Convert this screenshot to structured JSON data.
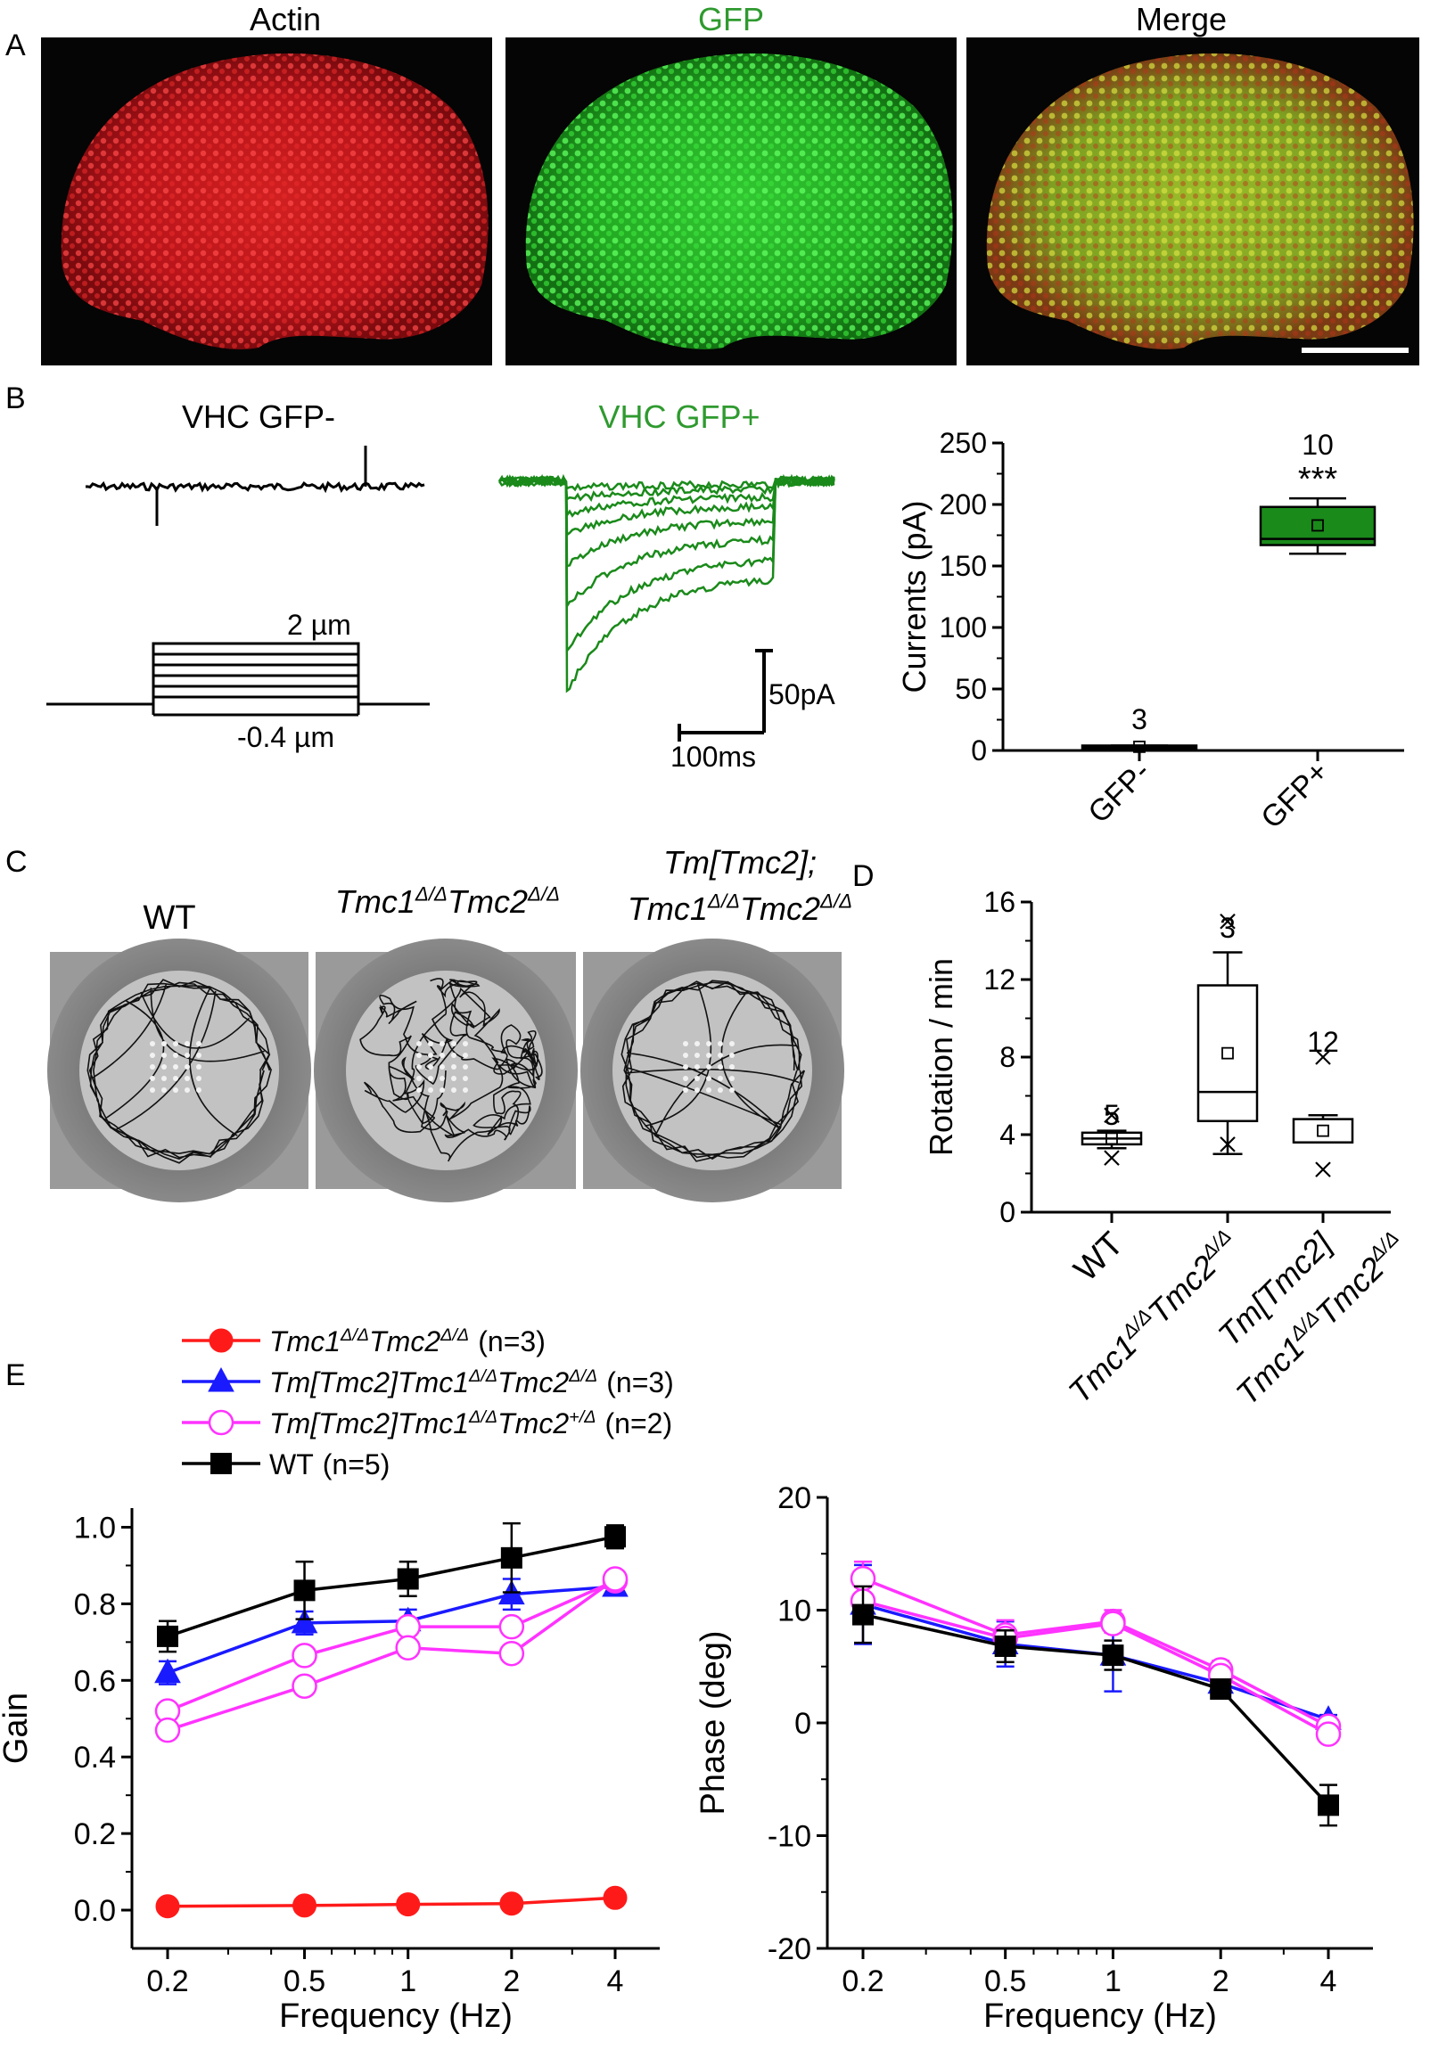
{
  "panels": {
    "A": {
      "letter": "A",
      "image_titles": [
        "Actin",
        "GFP",
        "Merge"
      ],
      "title_colors": [
        "#000000",
        "#2f9a2f",
        "#000000"
      ]
    },
    "B": {
      "letter": "B",
      "trace_titles": {
        "gfp_minus": "VHC GFP-",
        "gfp_plus": "VHC GFP+"
      },
      "stimulus": {
        "top_label": "2 µm",
        "bottom_label": "-0.4 µm"
      },
      "scalebar": {
        "y_label": "50pA",
        "x_label": "100ms"
      },
      "chart_data": {
        "type": "box",
        "ylabel": "Currents (pA)",
        "ylim": [
          0,
          250
        ],
        "yticks": [
          0,
          50,
          100,
          150,
          200,
          250
        ],
        "categories": [
          "GFP-",
          "GFP+"
        ],
        "groups": [
          {
            "label": "GFP-",
            "n": "3",
            "q1": 2,
            "median": 3,
            "q3": 4,
            "mean": 3,
            "whisker_low": 2,
            "whisker_high": 4,
            "color": "#000000"
          },
          {
            "label": "GFP+",
            "n": "10",
            "sig": "***",
            "q1": 167,
            "median": 172,
            "q3": 198,
            "mean": 183,
            "whisker_low": 160,
            "whisker_high": 205,
            "color": "#1a8a1a"
          }
        ]
      }
    },
    "C": {
      "letter": "C",
      "labels": [
        "WT"
      ],
      "italic_labels": {
        "dko": "Tmc1Δ/ΔTmc2Δ/Δ",
        "rescue_line1": "Tm[Tmc2];",
        "rescue_line2": "Tmc1Δ/ΔTmc2Δ/Δ"
      }
    },
    "D": {
      "letter": "D",
      "chart_data": {
        "type": "box",
        "ylabel": "Rotation / min",
        "ylim": [
          0,
          16
        ],
        "yticks": [
          0,
          4,
          8,
          12,
          16
        ],
        "categories": [
          "WT",
          "Tmc1Δ/ΔTmc2Δ/Δ",
          "Tm[Tmc2] Tmc1Δ/ΔTmc2Δ/Δ"
        ],
        "groups": [
          {
            "n": "5",
            "q1": 3.5,
            "median": 3.8,
            "q3": 4.1,
            "mean": 3.8,
            "whisker_low": 3.3,
            "whisker_high": 4.2,
            "outliers": [
              2.8,
              5.0
            ]
          },
          {
            "n": "3",
            "q1": 4.7,
            "median": 6.2,
            "q3": 11.7,
            "mean": 8.2,
            "whisker_low": 3.0,
            "whisker_high": 13.4,
            "outliers": [
              15.0,
              3.5
            ]
          },
          {
            "n": "12",
            "q1": 3.6,
            "median": 3.6,
            "q3": 4.8,
            "mean": 4.2,
            "whisker_low": 3.6,
            "whisker_high": 5.0,
            "outliers": [
              8.0,
              2.2
            ]
          }
        ]
      }
    },
    "E": {
      "letter": "E",
      "legend": [
        {
          "name": "Tmc1Δ/ΔTmc2Δ/Δ",
          "n": "(n=3)",
          "color": "#ff1a1a",
          "marker": "circle-filled"
        },
        {
          "name": "Tm[Tmc2]Tmc1Δ/ΔTmc2Δ/Δ",
          "n": "(n=3)",
          "color": "#1a1aff",
          "marker": "triangle-filled"
        },
        {
          "name": "Tm[Tmc2]Tmc1Δ/ΔTmc2+/Δ",
          "n": "(n=2)",
          "color": "#ff33ff",
          "marker": "circle-open"
        },
        {
          "name": "WT",
          "n": "(n=5)",
          "color": "#000000",
          "marker": "square-filled"
        }
      ],
      "charts": [
        {
          "type": "line",
          "xlabel": "Frequency (Hz)",
          "ylabel": "Gain",
          "x": [
            0.2,
            0.5,
            1,
            2,
            4
          ],
          "xtick_labels": [
            "0.2",
            "0.5",
            "1",
            "2",
            "4"
          ],
          "xscale": "log",
          "ylim": [
            -0.1,
            1.05
          ],
          "yticks": [
            0.0,
            0.2,
            0.4,
            0.6,
            0.8,
            1.0
          ],
          "ytick_labels": [
            "0.0",
            "0.2",
            "0.4",
            "0.6",
            "0.8",
            "1.0"
          ],
          "series": [
            {
              "key": "dko",
              "values": [
                0.01,
                0.012,
                0.015,
                0.017,
                0.032
              ],
              "err": [
                0,
                0,
                0,
                0,
                0
              ]
            },
            {
              "key": "rescue",
              "values": [
                0.62,
                0.75,
                0.755,
                0.825,
                0.845
              ],
              "err": [
                0.03,
                0.03,
                0.03,
                0.04,
                0.02
              ]
            },
            {
              "key": "het1",
              "values": [
                0.52,
                0.665,
                0.74,
                0.74,
                0.86
              ],
              "err": [
                0,
                0,
                0,
                0,
                0
              ]
            },
            {
              "key": "het2",
              "values": [
                0.47,
                0.585,
                0.685,
                0.67,
                0.865
              ],
              "err": [
                0,
                0,
                0,
                0,
                0
              ]
            },
            {
              "key": "wt",
              "values": [
                0.715,
                0.835,
                0.865,
                0.92,
                0.975
              ],
              "err": [
                0.04,
                0.075,
                0.045,
                0.09,
                0.03
              ]
            }
          ]
        },
        {
          "type": "line",
          "xlabel": "Frequency (Hz)",
          "ylabel": "Phase (deg)",
          "x": [
            0.2,
            0.5,
            1,
            2,
            4
          ],
          "xtick_labels": [
            "0.2",
            "0.5",
            "1",
            "2",
            "4"
          ],
          "xscale": "log",
          "ylim": [
            -20,
            20
          ],
          "yticks": [
            -20,
            -10,
            0,
            10,
            20
          ],
          "ytick_labels": [
            "-20",
            "-10",
            "0",
            "10",
            "20"
          ],
          "series": [
            {
              "key": "rescue",
              "values": [
                10.5,
                7.0,
                6.0,
                3.5,
                0.3
              ],
              "err": [
                3.5,
                2.0,
                3.2,
                1.0,
                0.4
              ]
            },
            {
              "key": "het1",
              "values": [
                12.8,
                7.8,
                9.0,
                4.7,
                -0.3
              ],
              "err": [
                1.5,
                1.3,
                1.0,
                0.8,
                0.5
              ]
            },
            {
              "key": "het2",
              "values": [
                10.8,
                7.5,
                8.8,
                4.2,
                -1.0
              ],
              "err": [
                0,
                0,
                0,
                0,
                0
              ]
            },
            {
              "key": "wt",
              "values": [
                9.6,
                6.8,
                6.0,
                3.0,
                -7.3
              ],
              "err": [
                2.5,
                1.4,
                1.3,
                0.8,
                1.8
              ]
            }
          ]
        }
      ]
    }
  }
}
